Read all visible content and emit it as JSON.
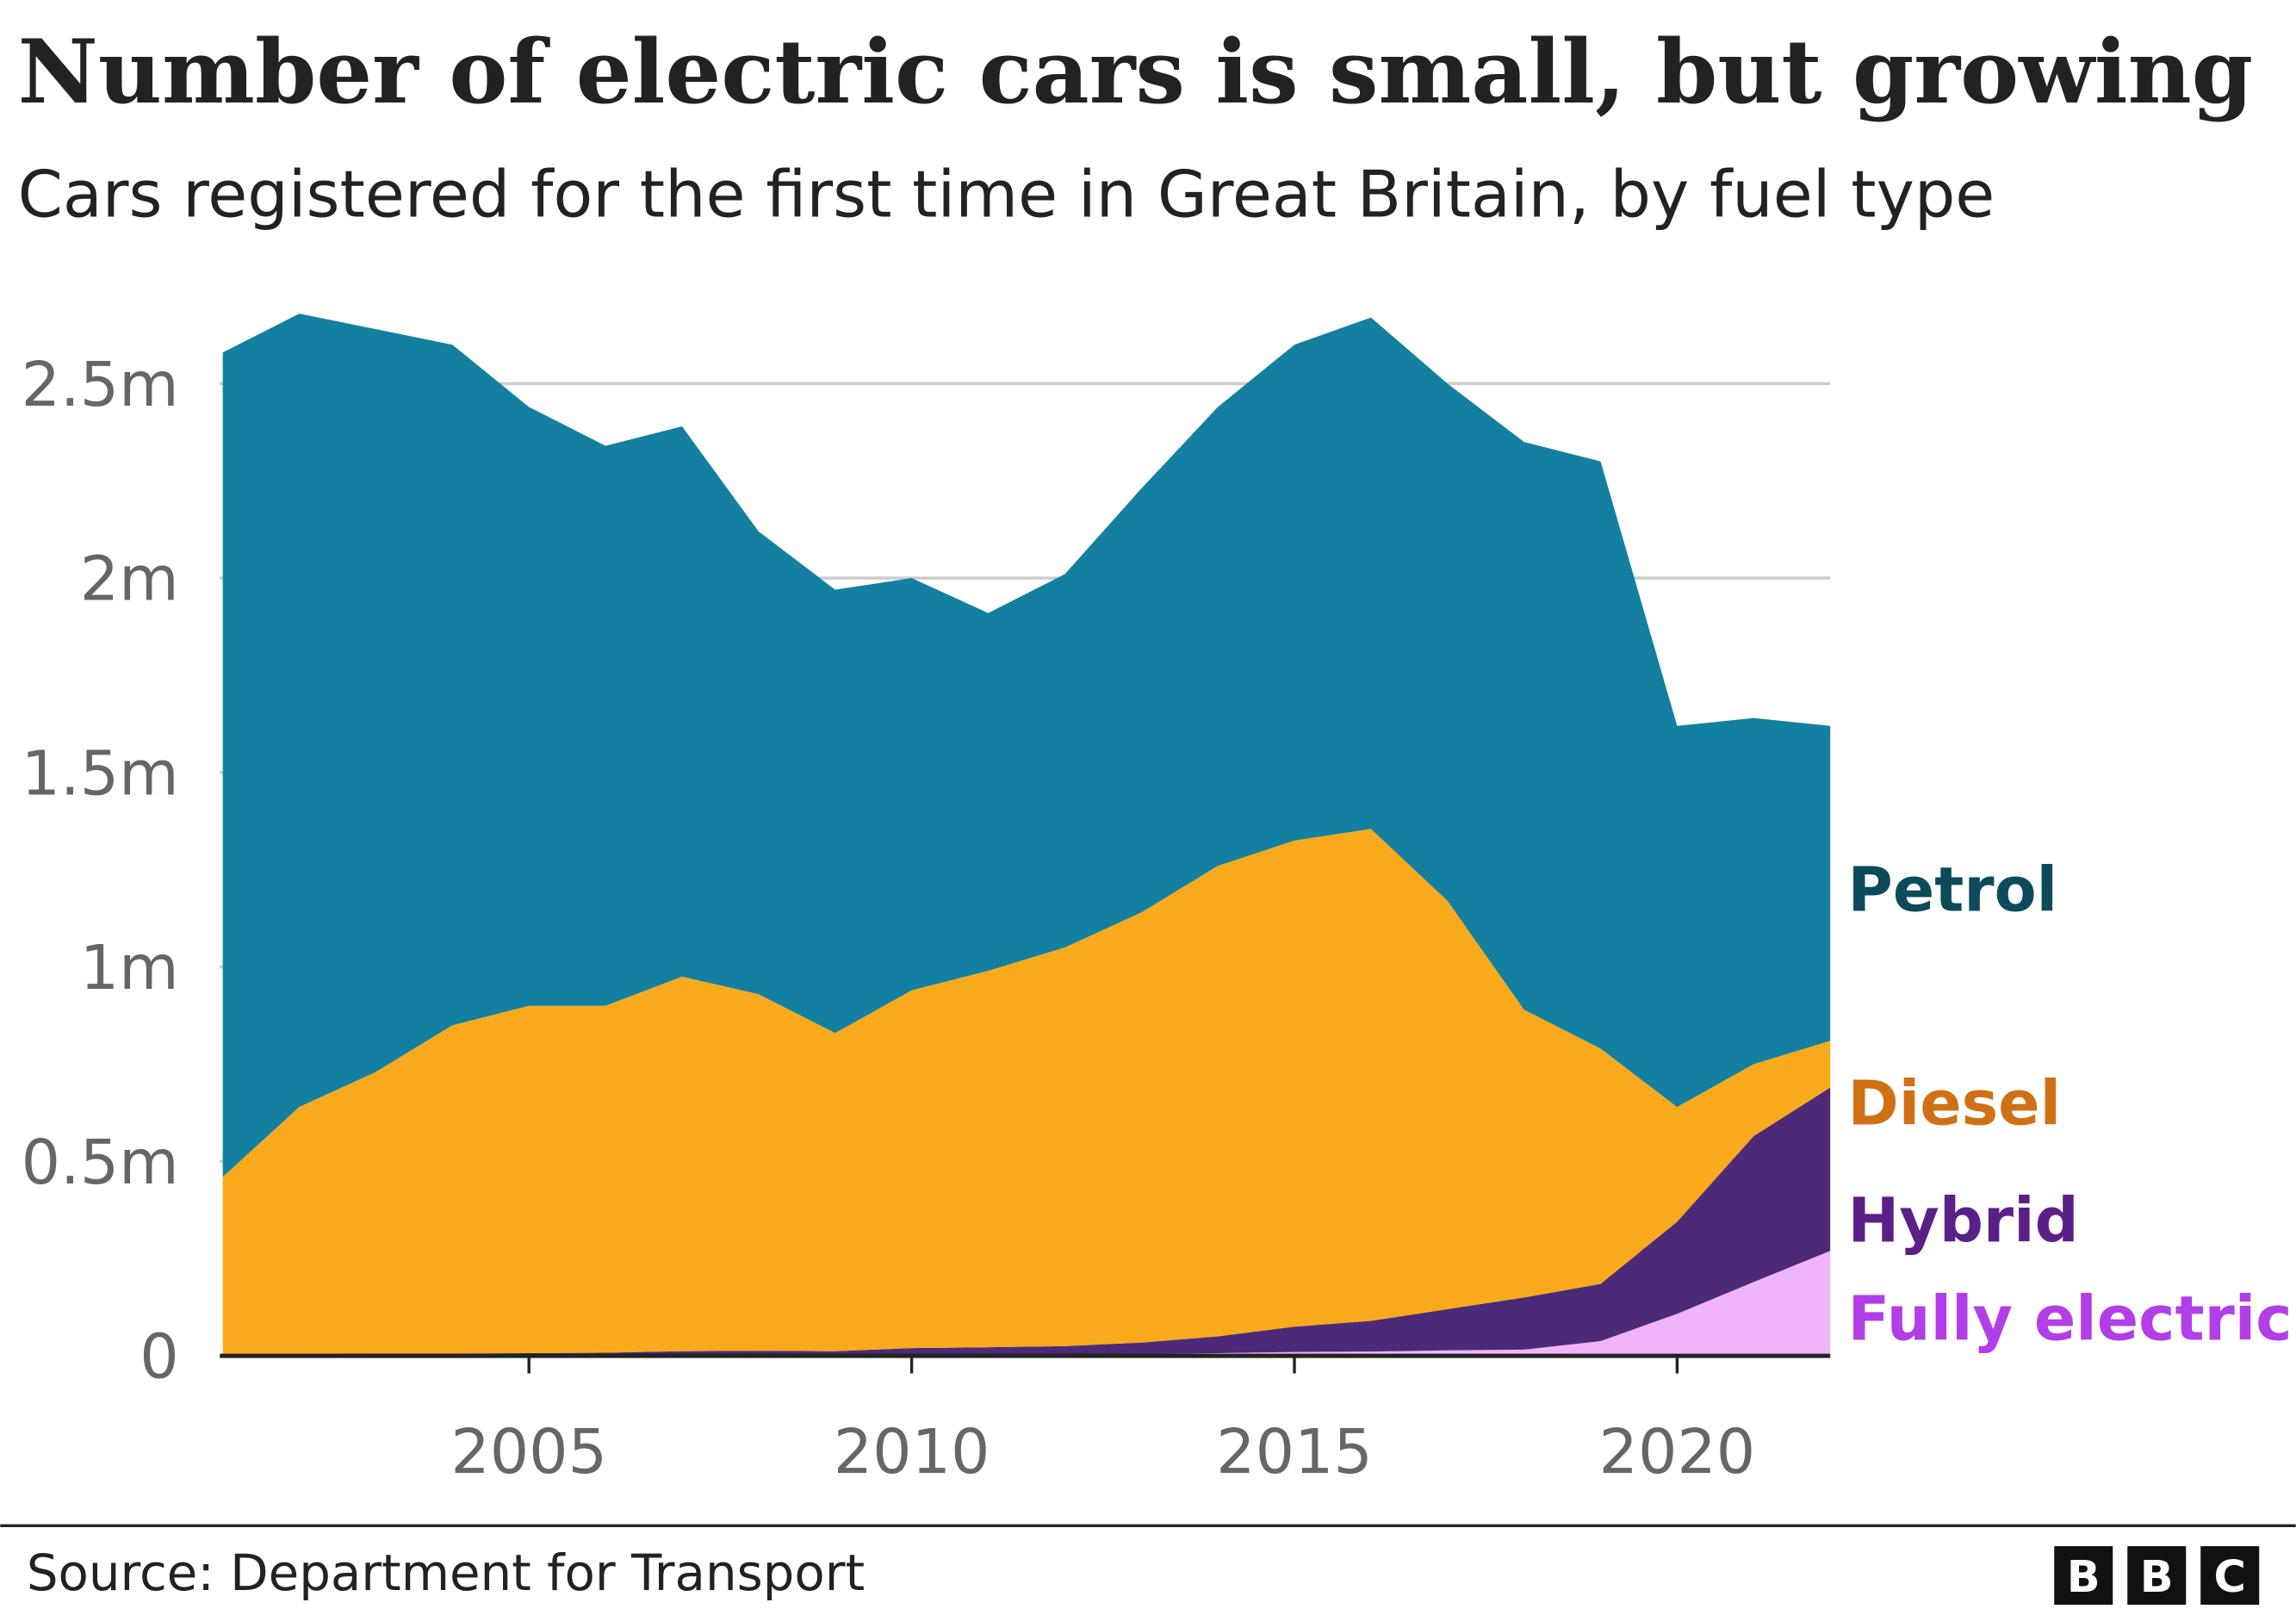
{
  "title": "Number of electric cars is small, but growing",
  "subtitle": "Cars registered for the first time in Great Britain, by fuel type",
  "source": "Source: Department for Transport",
  "logo": [
    "B",
    "B",
    "C"
  ],
  "chart_data": {
    "type": "area",
    "stacked": true,
    "title": "Number of electric cars is small, but growing",
    "subtitle": "Cars registered for the first time in Great Britain, by fuel type",
    "xlabel": "",
    "ylabel": "",
    "x": [
      2001,
      2002,
      2003,
      2004,
      2005,
      2006,
      2007,
      2008,
      2009,
      2010,
      2011,
      2012,
      2013,
      2014,
      2015,
      2016,
      2017,
      2018,
      2019,
      2020,
      2021,
      2022
    ],
    "xlim": [
      2001,
      2022
    ],
    "ylim": [
      0,
      2.7
    ],
    "y_unit": "millions",
    "grid": "horizontal",
    "legend": "direct labels at right",
    "x_ticks": [
      2005,
      2010,
      2015,
      2020
    ],
    "x_tick_labels": [
      "2005",
      "2010",
      "2015",
      "2020"
    ],
    "y_ticks": [
      0,
      0.5,
      1,
      1.5,
      2,
      2.5
    ],
    "y_tick_labels": [
      "0",
      "0.5m",
      "1m",
      "1.5m",
      "2m",
      "2.5m"
    ],
    "series": [
      {
        "name": "Fully electric",
        "color": "#f0b4fb",
        "label_color": "#b23ee8",
        "values": [
          0,
          0,
          0,
          0,
          0,
          0,
          0,
          0,
          0,
          0,
          0.002,
          0.003,
          0.004,
          0.007,
          0.01,
          0.011,
          0.014,
          0.016,
          0.038,
          0.108,
          0.19,
          0.27
        ]
      },
      {
        "name": "Hybrid",
        "color": "#4d2a78",
        "label_color": "#5b2088",
        "values": [
          0.005,
          0.005,
          0.006,
          0.006,
          0.007,
          0.008,
          0.012,
          0.013,
          0.012,
          0.02,
          0.02,
          0.022,
          0.03,
          0.043,
          0.065,
          0.079,
          0.106,
          0.134,
          0.147,
          0.237,
          0.375,
          0.42
        ]
      },
      {
        "name": "Diesel",
        "color": "#f8aa1c",
        "label_color": "#d07014",
        "values": [
          0.455,
          0.635,
          0.724,
          0.844,
          0.893,
          0.892,
          0.963,
          0.917,
          0.818,
          0.92,
          0.968,
          1.025,
          1.106,
          1.21,
          1.25,
          1.265,
          1.05,
          0.74,
          0.605,
          0.295,
          0.185,
          0.12
        ]
      },
      {
        "name": "Petrol",
        "color": "#1380a1",
        "label_color": "#0c4b5a",
        "values": [
          2.12,
          2.04,
          1.91,
          1.75,
          1.54,
          1.44,
          1.415,
          1.19,
          1.14,
          1.06,
          0.92,
          0.96,
          1.09,
          1.18,
          1.275,
          1.315,
          1.33,
          1.46,
          1.51,
          0.98,
          0.89,
          0.81
        ]
      }
    ]
  }
}
